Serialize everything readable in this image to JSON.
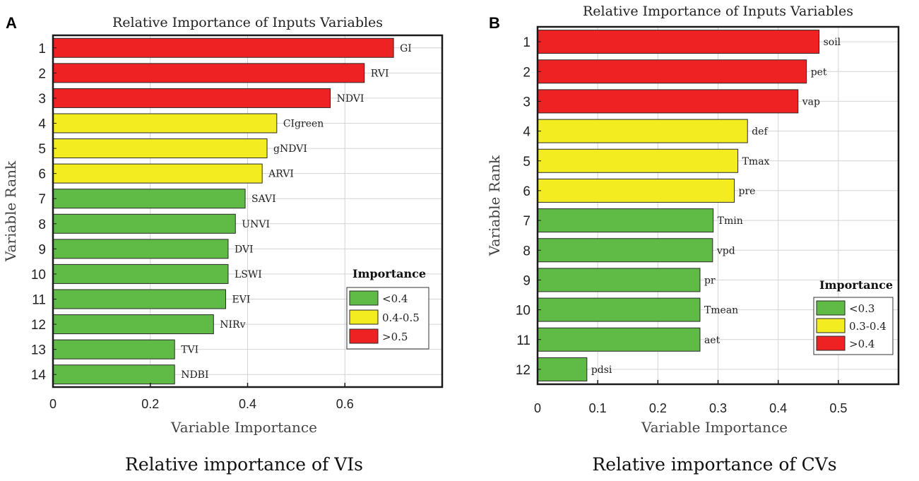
{
  "panels": [
    {
      "letter": "A",
      "caption": "Relative importance of VIs",
      "chart_data": {
        "type": "bar",
        "orientation": "horizontal",
        "title": "Relative Importance of Inputs Variables",
        "xlabel": "Variable Importance",
        "ylabel": "Variable Rank",
        "xlim": [
          0,
          0.8
        ],
        "xticks": [
          0,
          0.2,
          0.4,
          0.6
        ],
        "xtick_labels": [
          "0",
          "0.2",
          "0.4",
          "0.6"
        ],
        "grid": true,
        "ranks": [
          "1",
          "2",
          "3",
          "4",
          "5",
          "6",
          "7",
          "8",
          "9",
          "10",
          "11",
          "12",
          "13",
          "14"
        ],
        "labels": [
          "GI",
          "RVI",
          "NDVI",
          "CIgreen",
          "gNDVI",
          "ARVI",
          "SAVI",
          "UNVI",
          "DVI",
          "LSWI",
          "EVI",
          "NIRv",
          "TVI",
          "NDBI"
        ],
        "values": [
          0.7,
          0.64,
          0.57,
          0.46,
          0.44,
          0.43,
          0.395,
          0.375,
          0.36,
          0.36,
          0.355,
          0.33,
          0.25,
          0.25
        ],
        "categories": [
          "high",
          "high",
          "high",
          "mid",
          "mid",
          "mid",
          "low",
          "low",
          "low",
          "low",
          "low",
          "low",
          "low",
          "low"
        ],
        "legend": {
          "title": "Importance",
          "position": "lower-right",
          "entries": [
            {
              "key": "low",
              "label": "<0.4"
            },
            {
              "key": "mid",
              "label": "0.4-0.5"
            },
            {
              "key": "high",
              "label": ">0.5"
            }
          ]
        }
      }
    },
    {
      "letter": "B",
      "caption": "Relative importance of CVs",
      "chart_data": {
        "type": "bar",
        "orientation": "horizontal",
        "title": "Relative Importance of Inputs Variables",
        "xlabel": "Variable Importance",
        "ylabel": "Variable Rank",
        "xlim": [
          0,
          0.6
        ],
        "xticks": [
          0,
          0.1,
          0.2,
          0.3,
          0.4,
          0.5
        ],
        "xtick_labels": [
          "0",
          "0.1",
          "0.2",
          "0.3",
          "0.4",
          "0.5"
        ],
        "grid": true,
        "ranks": [
          "1",
          "2",
          "3",
          "4",
          "5",
          "6",
          "7",
          "8",
          "9",
          "10",
          "11",
          "12"
        ],
        "labels": [
          "soil",
          "pet",
          "vap",
          "def",
          "Tmax",
          "pre",
          "Tmin",
          "vpd",
          "pr",
          "Tmean",
          "aet",
          "pdsi"
        ],
        "values": [
          0.468,
          0.447,
          0.433,
          0.349,
          0.333,
          0.327,
          0.292,
          0.291,
          0.27,
          0.27,
          0.27,
          0.082
        ],
        "categories": [
          "high",
          "high",
          "high",
          "mid",
          "mid",
          "mid",
          "low",
          "low",
          "low",
          "low",
          "low",
          "low"
        ],
        "legend": {
          "title": "Importance",
          "position": "lower-right",
          "entries": [
            {
              "key": "low",
              "label": "<0.3"
            },
            {
              "key": "mid",
              "label": "0.3-0.4"
            },
            {
              "key": "high",
              "label": ">0.4"
            }
          ]
        }
      }
    }
  ],
  "colors": {
    "high": "#ee2222",
    "mid": "#f2ec21",
    "low": "#5fba46",
    "grid": "#d4d4d4",
    "axis": "#1a1a1a",
    "text": "#222222"
  }
}
